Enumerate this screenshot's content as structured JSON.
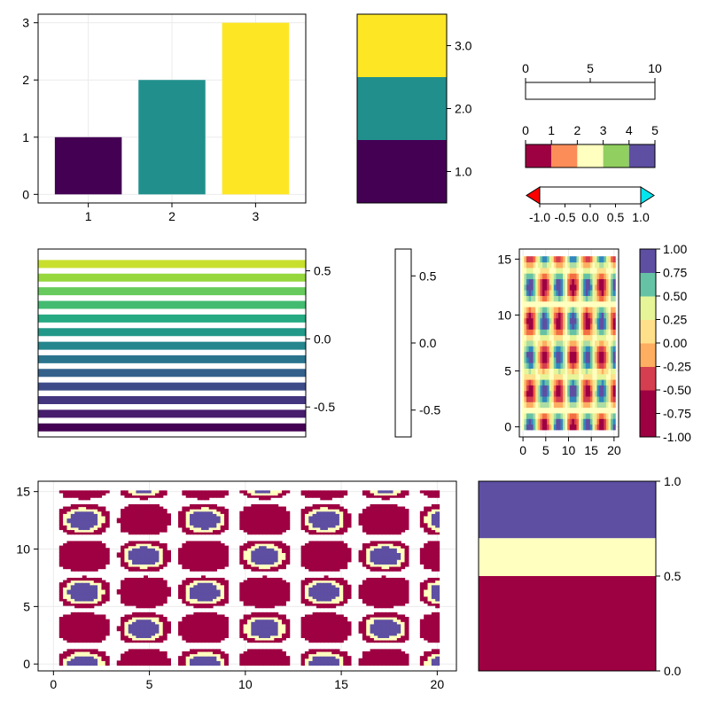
{
  "figure": {
    "background": "#ffffff"
  },
  "colormaps": {
    "viridis": [
      "#440154",
      "#472d7b",
      "#3b528b",
      "#2c728e",
      "#21908d",
      "#27ad81",
      "#5cc863",
      "#aadc32",
      "#fde725"
    ],
    "spectral_5": [
      "#9e0142",
      "#fc8d59",
      "#ffffbf",
      "#91cf60",
      "#5e4fa2"
    ],
    "spectral_ramp": [
      "#9e0142",
      "#f46d43",
      "#fdae61",
      "#fee08b",
      "#e6f598",
      "#abdda4",
      "#66c2a5",
      "#5e4fa2"
    ],
    "heat": [
      "#fffff0",
      "#ffe680",
      "#ffb000",
      "#e06000",
      "#b01000",
      "#6a0000"
    ],
    "balance": [
      "#0a0096",
      "#3c50c8",
      "#9696cc",
      "#d0d0d0",
      "#cc8c8c",
      "#b43232",
      "#800000"
    ]
  },
  "chart_data": [
    {
      "id": "barplot",
      "type": "bar",
      "categories": [
        "1",
        "2",
        "3"
      ],
      "values": [
        1,
        2,
        3
      ],
      "colors": [
        "#440154",
        "#21908d",
        "#fde725"
      ],
      "xticks": [
        "1",
        "2",
        "3"
      ],
      "yticks": [
        "0",
        "1",
        "2",
        "3"
      ],
      "ylim": [
        -0.15,
        3.15
      ],
      "grid": true
    },
    {
      "id": "stacked-colorbar",
      "type": "bar",
      "values": [
        1.0,
        2.0,
        3.0
      ],
      "colors": [
        "#440154",
        "#21908d",
        "#fde725"
      ],
      "yticks": [
        "1.0",
        "2.0",
        "3.0"
      ],
      "ylim": [
        0.5,
        3.5
      ]
    },
    {
      "id": "colorbar-viridis",
      "type": "heatmap",
      "colormap": "viridis",
      "range": [
        0,
        10
      ],
      "ticks": [
        "0",
        "5",
        "10"
      ]
    },
    {
      "id": "colorbar-categorical",
      "type": "heatmap",
      "colors": [
        "#9e0142",
        "#fc8d59",
        "#ffffbf",
        "#91cf60",
        "#5e4fa2"
      ],
      "range": [
        0,
        5
      ],
      "ticks": [
        "0",
        "1",
        "2",
        "3",
        "4",
        "5"
      ]
    },
    {
      "id": "colorbar-extended",
      "type": "heatmap",
      "colormap": "heat",
      "range": [
        -1.0,
        1.0
      ],
      "low_clip": "#ff0000",
      "high_clip": "#00e5ee",
      "ticks": [
        "-1.0",
        "-0.5",
        "0.0",
        "0.5",
        "1.0"
      ]
    },
    {
      "id": "horizontal-lines",
      "type": "line",
      "y": [
        -0.65,
        -0.55,
        -0.45,
        -0.35,
        -0.25,
        -0.15,
        -0.05,
        0.05,
        0.15,
        0.25,
        0.35,
        0.45,
        0.55
      ],
      "colormap": "viridis",
      "yticks": [
        "-0.5",
        "0.0",
        "0.5"
      ],
      "ylim": [
        -0.72,
        0.66
      ]
    },
    {
      "id": "colorbar-balance",
      "type": "heatmap",
      "colormap": "balance",
      "range": [
        -0.7,
        0.7
      ],
      "ticks": [
        "-0.5",
        "0.0",
        "0.5"
      ]
    },
    {
      "id": "contourf-small",
      "type": "heatmap",
      "function": "sin(x) * cos(y)",
      "xlim": [
        -0.8,
        21.0
      ],
      "ylim": [
        -0.9,
        15.9
      ],
      "xticks": [
        "0",
        "5",
        "10",
        "15",
        "20"
      ],
      "yticks": [
        "0",
        "5",
        "10",
        "15"
      ],
      "grid": true
    },
    {
      "id": "colorbar-spectral-levels",
      "type": "heatmap",
      "colors": [
        "#9e0142",
        "#9e0142",
        "#d53e4f",
        "#fdae61",
        "#fee08b",
        "#e6f598",
        "#66c2a5",
        "#5e4fa2"
      ],
      "range": [
        -1.0,
        1.0
      ],
      "ticks": [
        "-1.00",
        "-0.75",
        "-0.50",
        "-0.25",
        "0.00",
        "0.25",
        "0.50",
        "0.75",
        "1.00"
      ]
    },
    {
      "id": "contourf-large",
      "type": "heatmap",
      "function": "sin(x) * cos(y)",
      "levels": [
        0.5,
        0.7
      ],
      "colors": [
        "#9e0142",
        "#ffffbf",
        "#5e4fa2"
      ],
      "xlim": [
        -0.8,
        21.0
      ],
      "ylim": [
        -0.6,
        15.9
      ],
      "xticks": [
        "0",
        "5",
        "10",
        "15",
        "20"
      ],
      "yticks": [
        "0",
        "5",
        "10",
        "15"
      ],
      "grid": true
    },
    {
      "id": "colorbar-levels",
      "type": "heatmap",
      "colors": [
        "#9e0142",
        "#ffffbf",
        "#5e4fa2"
      ],
      "bounds": [
        0.0,
        0.5,
        0.7,
        1.0
      ],
      "ticks": [
        "0.0",
        "0.5",
        "1.0"
      ]
    }
  ]
}
